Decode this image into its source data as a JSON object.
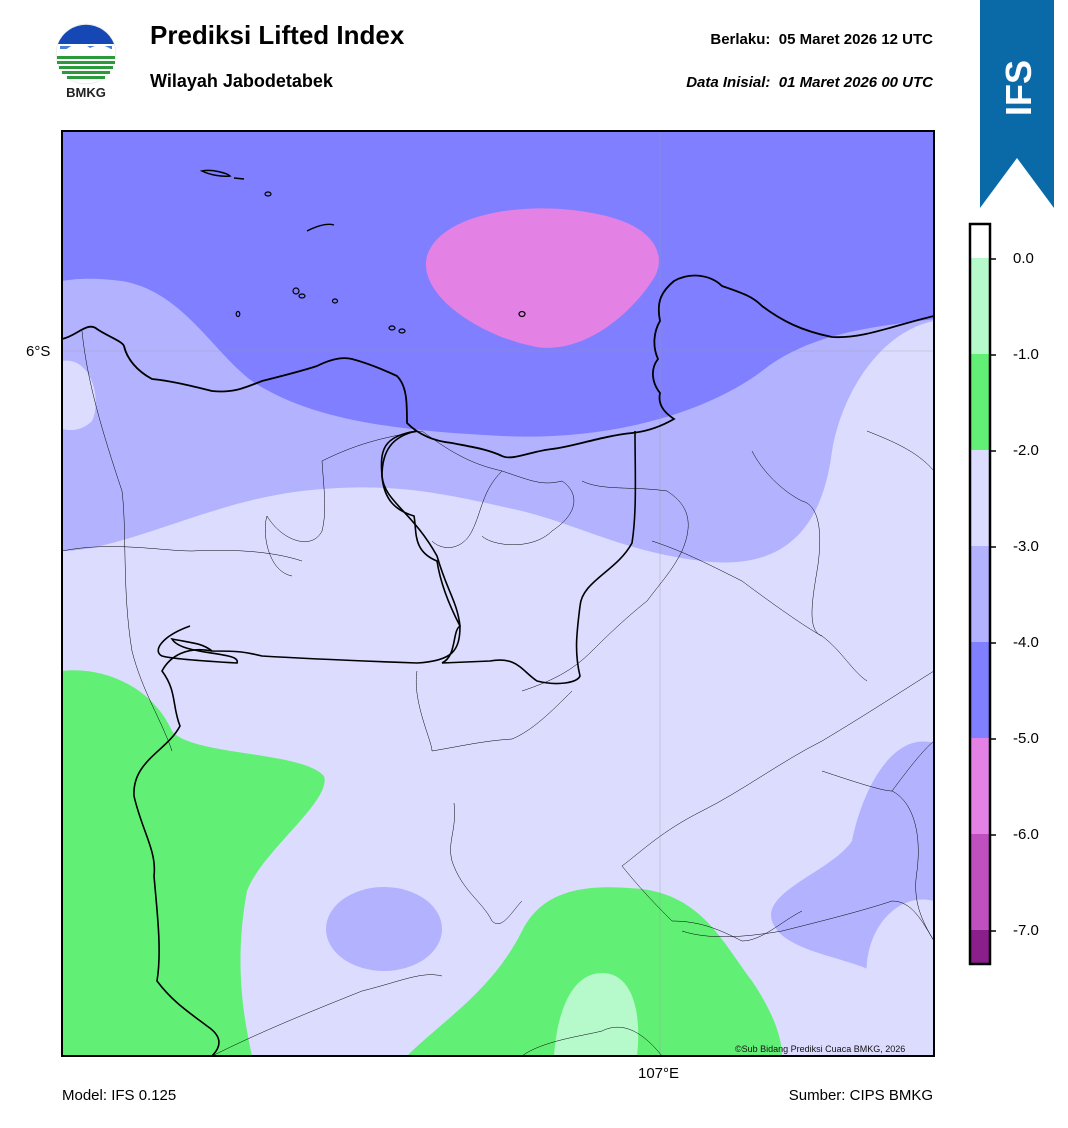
{
  "header": {
    "title": "Prediksi Lifted Index",
    "subtitle": "Wilayah Jabodetabek",
    "valid_label": "Berlaku:",
    "valid_value": "05 Maret 2026 12 UTC",
    "init_label": "Data Inisial:",
    "init_value": "01 Maret 2026 00 UTC"
  },
  "logo": {
    "icon": "bmkg-logo-icon",
    "text": "BMKG"
  },
  "banner": {
    "text": "IFS",
    "color": "#0a6aa8"
  },
  "map": {
    "lat_label": "6°S",
    "lon_label": "107°E",
    "copyright": "©Sub Bidang Prediksi Cuaca BMKG, 2026"
  },
  "colorbar": {
    "ticks": [
      "0.0",
      "-1.0",
      "-2.0",
      "-3.0",
      "-4.0",
      "-5.0",
      "-6.0",
      "-7.0"
    ],
    "colors": {
      "above_0": "#ffffff",
      "0_to_-1": "#b6f9cb",
      "-1_to_-2": "#62ef76",
      "-2_to_-3": "#dcdcff",
      "-3_to_-4": "#b2b2ff",
      "-4_to_-5": "#7f7fff",
      "-5_to_-6": "#e481e4",
      "-6_to_-7": "#c050c0",
      "below_-7": "#8a1e8a"
    }
  },
  "footer": {
    "model": "Model: IFS 0.125",
    "source": "Sumber: CIPS BMKG"
  }
}
